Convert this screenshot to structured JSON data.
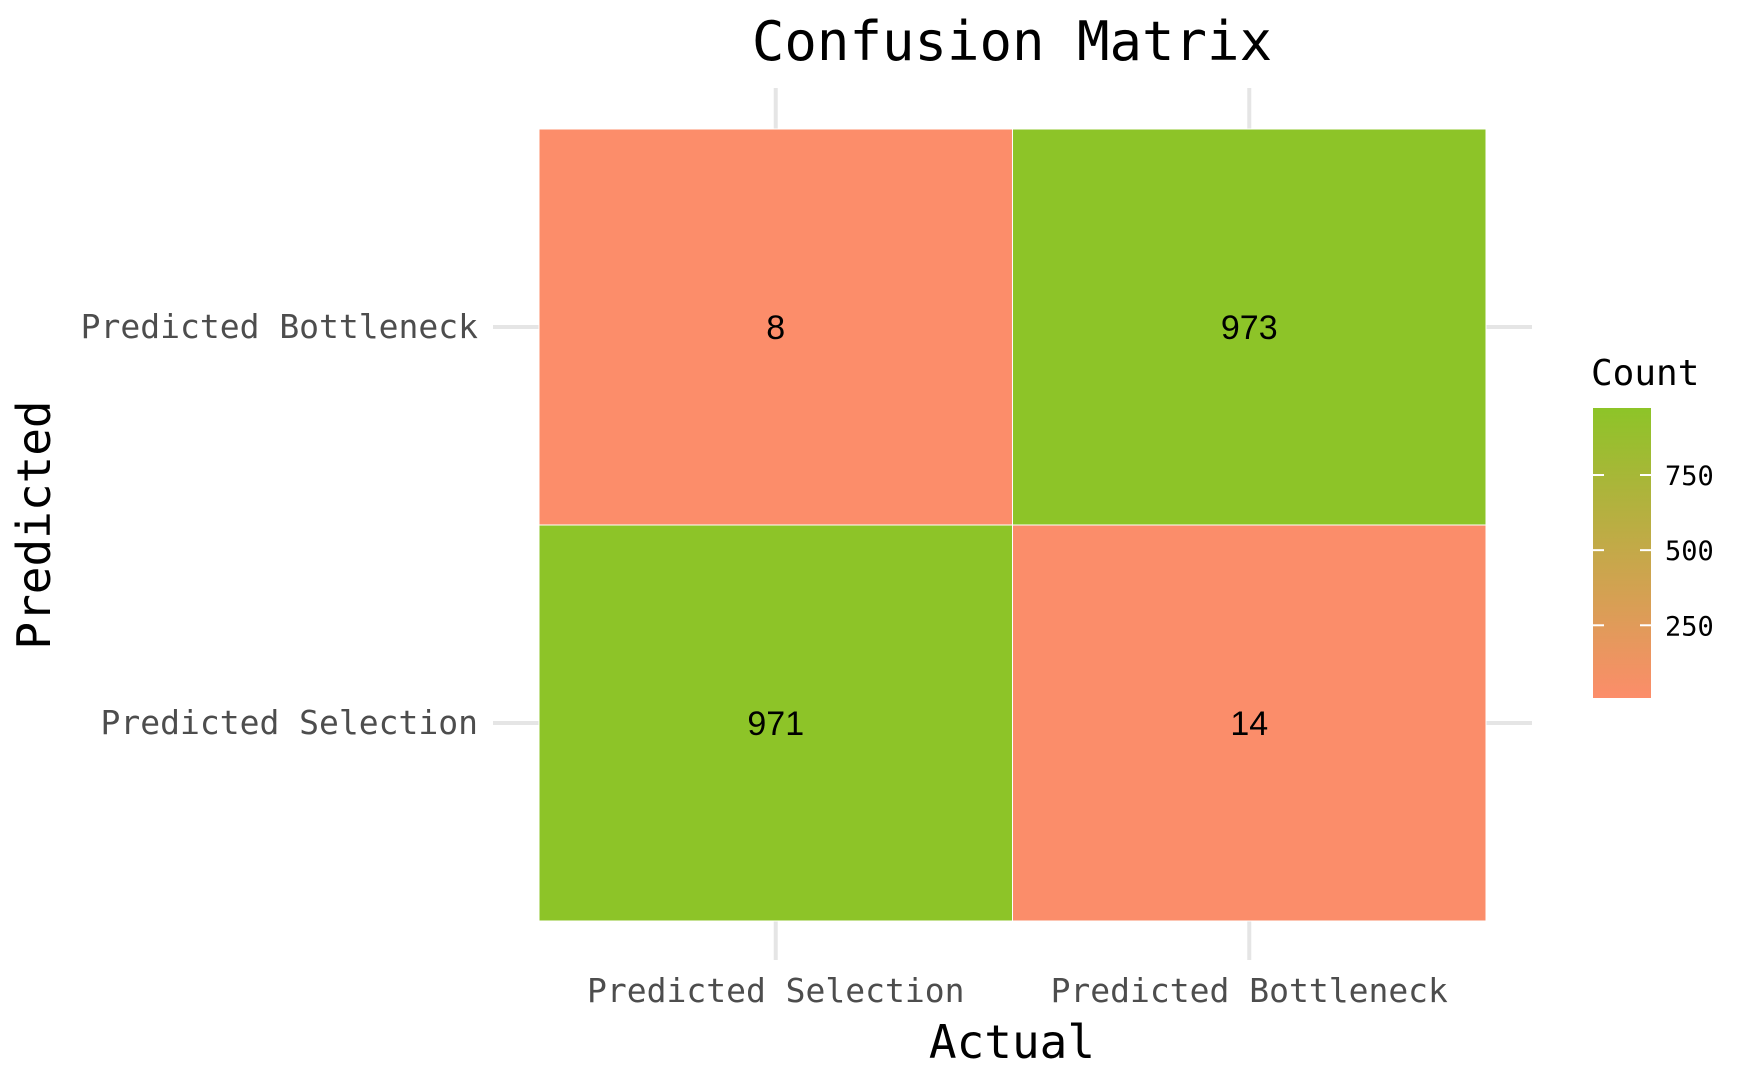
{
  "chart_data": {
    "type": "heatmap",
    "title": "Confusion Matrix",
    "xlabel": "Actual",
    "ylabel": "Predicted",
    "x_categories": [
      "Predicted Selection",
      "Predicted Bottleneck"
    ],
    "y_categories": [
      "Predicted Selection",
      "Predicted Bottleneck"
    ],
    "cells": [
      {
        "x": "Predicted Selection",
        "y": "Predicted Bottleneck",
        "value": 8
      },
      {
        "x": "Predicted Bottleneck",
        "y": "Predicted Bottleneck",
        "value": 973
      },
      {
        "x": "Predicted Selection",
        "y": "Predicted Selection",
        "value": 971
      },
      {
        "x": "Predicted Bottleneck",
        "y": "Predicted Selection",
        "value": 14
      }
    ],
    "legend": {
      "title": "Count",
      "ticks": [
        250,
        500,
        750
      ],
      "range": [
        8,
        973
      ],
      "low_color": "#fc8d6a",
      "high_color": "#8dc428",
      "placement": "right"
    },
    "grid": true
  }
}
